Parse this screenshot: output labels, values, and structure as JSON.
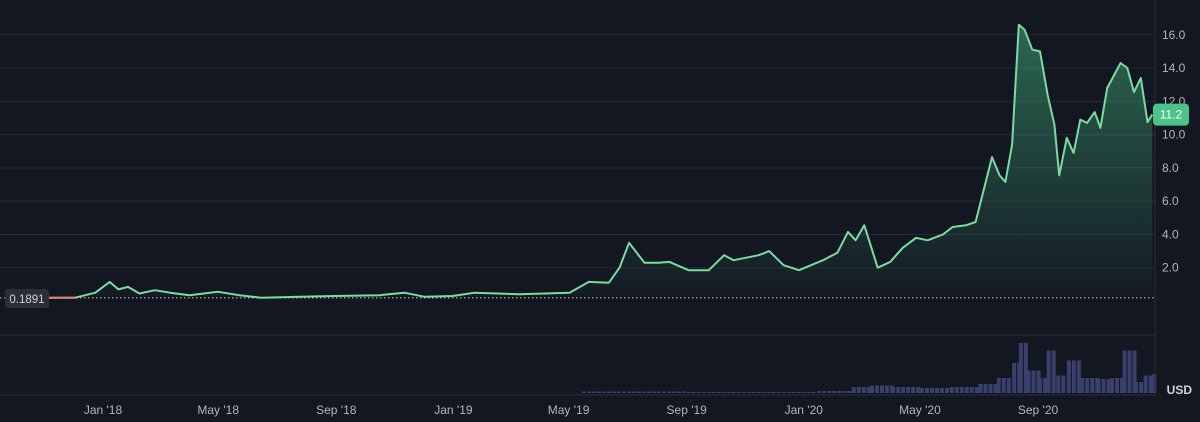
{
  "chart_data": {
    "type": "area",
    "currency_label": "USD",
    "last_price_label": "11.2",
    "baseline_label": "0.1891",
    "baseline_value": 0.1891,
    "colors": {
      "background": "#131722",
      "line_up": "#7fd9a3",
      "line_down": "#e07b7b",
      "last_price_badge": "#4cc38a",
      "volume": "#3b3f6b",
      "grid": "#262a36"
    },
    "y_axis": {
      "position": "right",
      "ticks": [
        "2.0",
        "4.0",
        "6.0",
        "8.0",
        "10.0",
        "12.0",
        "14.0",
        "16.0"
      ],
      "range": [
        0,
        17.5
      ]
    },
    "x_axis": {
      "ticks": [
        {
          "date": "2018-01-01",
          "label": "Jan '18"
        },
        {
          "date": "2018-05-01",
          "label": "May '18"
        },
        {
          "date": "2018-09-01",
          "label": "Sep '18"
        },
        {
          "date": "2019-01-01",
          "label": "Jan '19"
        },
        {
          "date": "2019-05-01",
          "label": "May '19"
        },
        {
          "date": "2019-09-01",
          "label": "Sep '19"
        },
        {
          "date": "2020-01-01",
          "label": "Jan '20"
        },
        {
          "date": "2020-05-01",
          "label": "May '20"
        },
        {
          "date": "2020-09-01",
          "label": "Sep '20"
        }
      ]
    },
    "grid": true,
    "series": [
      {
        "points": [
          [
            "2017-11-05",
            0.19
          ],
          [
            "2017-12-03",
            0.2
          ],
          [
            "2017-12-24",
            0.5
          ],
          [
            "2018-01-08",
            1.15
          ],
          [
            "2018-01-17",
            0.7
          ],
          [
            "2018-01-27",
            0.85
          ],
          [
            "2018-02-08",
            0.45
          ],
          [
            "2018-02-24",
            0.65
          ],
          [
            "2018-03-12",
            0.5
          ],
          [
            "2018-04-01",
            0.35
          ],
          [
            "2018-05-01",
            0.55
          ],
          [
            "2018-05-23",
            0.35
          ],
          [
            "2018-06-15",
            0.2
          ],
          [
            "2018-07-25",
            0.25
          ],
          [
            "2018-08-30",
            0.3
          ],
          [
            "2018-10-16",
            0.35
          ],
          [
            "2018-11-11",
            0.5
          ],
          [
            "2018-12-02",
            0.25
          ],
          [
            "2018-12-31",
            0.3
          ],
          [
            "2019-01-23",
            0.5
          ],
          [
            "2019-03-11",
            0.4
          ],
          [
            "2019-05-02",
            0.5
          ],
          [
            "2019-05-22",
            1.15
          ],
          [
            "2019-06-12",
            1.1
          ],
          [
            "2019-06-23",
            2.0
          ],
          [
            "2019-07-03",
            3.5
          ],
          [
            "2019-07-19",
            2.3
          ],
          [
            "2019-08-03",
            2.3
          ],
          [
            "2019-08-14",
            2.35
          ],
          [
            "2019-09-03",
            1.85
          ],
          [
            "2019-09-24",
            1.85
          ],
          [
            "2019-10-10",
            2.75
          ],
          [
            "2019-10-20",
            2.45
          ],
          [
            "2019-11-15",
            2.75
          ],
          [
            "2019-11-26",
            3.0
          ],
          [
            "2019-12-11",
            2.15
          ],
          [
            "2019-12-27",
            1.85
          ],
          [
            "2020-01-21",
            2.45
          ],
          [
            "2020-02-05",
            2.9
          ],
          [
            "2020-02-16",
            4.15
          ],
          [
            "2020-02-24",
            3.65
          ],
          [
            "2020-03-04",
            4.55
          ],
          [
            "2020-03-18",
            2.0
          ],
          [
            "2020-03-31",
            2.35
          ],
          [
            "2020-04-13",
            3.2
          ],
          [
            "2020-04-27",
            3.8
          ],
          [
            "2020-05-09",
            3.65
          ],
          [
            "2020-05-25",
            4.0
          ],
          [
            "2020-06-04",
            4.45
          ],
          [
            "2020-06-18",
            4.55
          ],
          [
            "2020-06-28",
            4.75
          ],
          [
            "2020-07-15",
            8.65
          ],
          [
            "2020-07-23",
            7.55
          ],
          [
            "2020-07-29",
            7.15
          ],
          [
            "2020-08-05",
            9.4
          ],
          [
            "2020-08-12",
            16.6
          ],
          [
            "2020-08-18",
            16.3
          ],
          [
            "2020-08-26",
            15.1
          ],
          [
            "2020-09-03",
            15.0
          ],
          [
            "2020-09-11",
            12.4
          ],
          [
            "2020-09-18",
            10.6
          ],
          [
            "2020-09-23",
            7.55
          ],
          [
            "2020-10-01",
            9.8
          ],
          [
            "2020-10-08",
            8.9
          ],
          [
            "2020-10-15",
            10.9
          ],
          [
            "2020-10-22",
            10.7
          ],
          [
            "2020-10-30",
            11.35
          ],
          [
            "2020-11-05",
            10.4
          ],
          [
            "2020-11-12",
            12.8
          ],
          [
            "2020-11-26",
            14.3
          ],
          [
            "2020-12-03",
            14.0
          ],
          [
            "2020-12-10",
            12.55
          ],
          [
            "2020-12-17",
            13.4
          ],
          [
            "2020-12-24",
            10.75
          ],
          [
            "2020-12-29",
            11.2
          ]
        ]
      }
    ],
    "volume_relative": [
      [
        "2019-05-15",
        0.03
      ],
      [
        "2019-09-01",
        0.02
      ],
      [
        "2020-01-15",
        0.04
      ],
      [
        "2020-02-20",
        0.12
      ],
      [
        "2020-03-10",
        0.15
      ],
      [
        "2020-04-01",
        0.12
      ],
      [
        "2020-05-01",
        0.1
      ],
      [
        "2020-06-01",
        0.12
      ],
      [
        "2020-07-01",
        0.18
      ],
      [
        "2020-07-20",
        0.3
      ],
      [
        "2020-08-05",
        0.6
      ],
      [
        "2020-08-12",
        1.0
      ],
      [
        "2020-08-20",
        0.45
      ],
      [
        "2020-09-01",
        0.3
      ],
      [
        "2020-09-10",
        0.85
      ],
      [
        "2020-09-20",
        0.35
      ],
      [
        "2020-10-01",
        0.65
      ],
      [
        "2020-10-15",
        0.3
      ],
      [
        "2020-11-01",
        0.28
      ],
      [
        "2020-11-15",
        0.3
      ],
      [
        "2020-11-28",
        0.85
      ],
      [
        "2020-12-10",
        0.22
      ],
      [
        "2020-12-20",
        0.35
      ],
      [
        "2020-12-29",
        0.38
      ]
    ]
  }
}
